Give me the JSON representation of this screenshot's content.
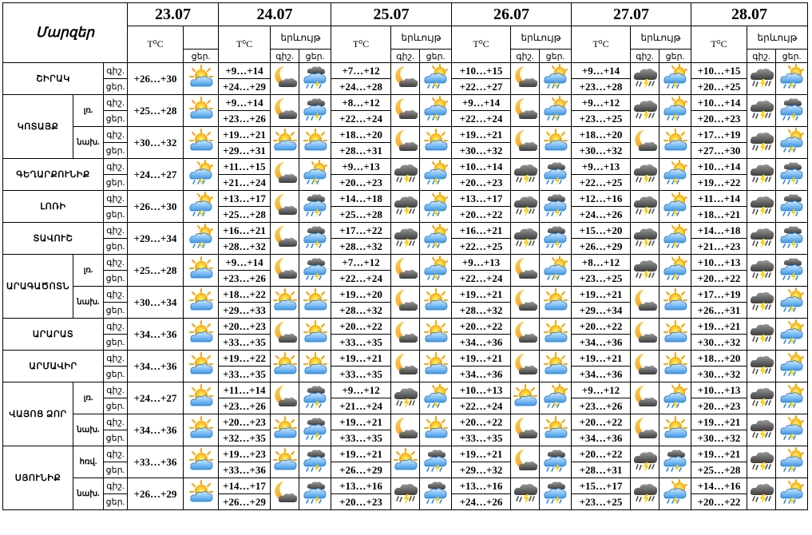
{
  "header": {
    "title": "Մարզեր",
    "temp_label": "T⁰C",
    "phen_label": "երևույթ",
    "night": "գիշ.",
    "day": "ցեր.",
    "days": [
      "23.07",
      "24.07",
      "25.07",
      "26.07",
      "27.07",
      "28.07"
    ]
  },
  "regions": [
    {
      "name": "ՇԻՐԱԿ",
      "rows": [
        {
          "sub": "",
          "d23": {
            "day": "+26…+30",
            "icon": "sun-cloud-icon"
          },
          "days": [
            {
              "n": "+9…+14",
              "d": "+24…+29",
              "i1": "moon-cloud-icon",
              "i2": "cloud-rain-thunder-icon"
            },
            {
              "n": "+7…+12",
              "d": "+24…+28",
              "i1": "moon-cloud-icon",
              "i2": "sun-cloud-rain-icon"
            },
            {
              "n": "+10…+15",
              "d": "+22…+27",
              "i1": "moon-cloud-icon",
              "i2": "sun-cloud-rain-icon"
            },
            {
              "n": "+9…+14",
              "d": "+23…+28",
              "i1": "storm-icon",
              "i2": "sun-cloud-rain-icon"
            },
            {
              "n": "+10…+15",
              "d": "+20…+25",
              "i1": "storm-icon",
              "i2": "sun-cloud-rain-icon"
            }
          ]
        }
      ]
    },
    {
      "name": "ԿՈՏԱՅՔ",
      "rows": [
        {
          "sub": "լռ.",
          "d23": {
            "day": "+25…+28",
            "icon": "sun-cloud-icon"
          },
          "days": [
            {
              "n": "+9…+14",
              "d": "+23…+26",
              "i1": "moon-cloud-icon",
              "i2": "cloud-rain-thunder-icon"
            },
            {
              "n": "+8…+12",
              "d": "+22…+24",
              "i1": "moon-cloud-icon",
              "i2": "sun-cloud-rain-icon"
            },
            {
              "n": "+9…+14",
              "d": "+22…+24",
              "i1": "moon-cloud-icon",
              "i2": "sun-cloud-rain-icon"
            },
            {
              "n": "+9…+12",
              "d": "+23…+25",
              "i1": "storm-icon",
              "i2": "sun-cloud-rain-icon"
            },
            {
              "n": "+10…+14",
              "d": "+20…+23",
              "i1": "storm-icon",
              "i2": "cloud-rain-thunder-icon"
            }
          ]
        },
        {
          "sub": "նախ.",
          "d23": {
            "day": "+30…+32",
            "icon": "sun-cloud-icon"
          },
          "days": [
            {
              "n": "+19…+21",
              "d": "+29…+31",
              "i1": "sun-cloud-icon",
              "i2": "sun-cloud-icon"
            },
            {
              "n": "+18…+20",
              "d": "+28…+31",
              "i1": "moon-cloud-icon",
              "i2": "sun-cloud-icon"
            },
            {
              "n": "+19…+21",
              "d": "+30…+32",
              "i1": "moon-cloud-icon",
              "i2": "sun-cloud-icon"
            },
            {
              "n": "+18…+20",
              "d": "+30…+32",
              "i1": "moon-cloud-icon",
              "i2": "sun-cloud-icon"
            },
            {
              "n": "+17…+19",
              "d": "+27…+30",
              "i1": "storm-icon",
              "i2": "sun-cloud-rain-icon"
            }
          ]
        }
      ]
    },
    {
      "name": "ԳԵՂԱՐՔՈՒՆԻՔ",
      "rows": [
        {
          "sub": "",
          "d23": {
            "day": "+24…+27",
            "icon": "sun-cloud-rain-icon"
          },
          "days": [
            {
              "n": "+11…+15",
              "d": "+21…+24",
              "i1": "moon-cloud-icon",
              "i2": "sun-cloud-rain-icon"
            },
            {
              "n": "+9…+13",
              "d": "+20…+23",
              "i1": "storm-icon",
              "i2": "sun-cloud-rain-icon"
            },
            {
              "n": "+10…+14",
              "d": "+20…+23",
              "i1": "storm-icon",
              "i2": "cloud-rain-thunder-icon"
            },
            {
              "n": "+9…+13",
              "d": "+22…+25",
              "i1": "storm-icon",
              "i2": "sun-cloud-rain-icon"
            },
            {
              "n": "+10…+14",
              "d": "+19…+22",
              "i1": "storm-icon",
              "i2": "cloud-rain-thunder-icon"
            }
          ]
        }
      ]
    },
    {
      "name": "ԼՈՌԻ",
      "rows": [
        {
          "sub": "",
          "d23": {
            "day": "+26…+30",
            "icon": "sun-cloud-rain-icon"
          },
          "days": [
            {
              "n": "+13…+17",
              "d": "+25…+28",
              "i1": "moon-cloud-icon",
              "i2": "cloud-rain-thunder-icon"
            },
            {
              "n": "+14…+18",
              "d": "+25…+28",
              "i1": "storm-icon",
              "i2": "sun-cloud-rain-icon"
            },
            {
              "n": "+13…+17",
              "d": "+20…+22",
              "i1": "storm-icon",
              "i2": "cloud-rain-thunder-icon"
            },
            {
              "n": "+12…+16",
              "d": "+24…+26",
              "i1": "storm-icon",
              "i2": "sun-cloud-rain-icon"
            },
            {
              "n": "+11…+14",
              "d": "+18…+21",
              "i1": "storm-icon",
              "i2": "cloud-rain-thunder-icon"
            }
          ]
        }
      ]
    },
    {
      "name": "ՏԱՎՈՒՇ",
      "rows": [
        {
          "sub": "",
          "d23": {
            "day": "+29…+34",
            "icon": "sun-cloud-rain-icon"
          },
          "days": [
            {
              "n": "+16…+21",
              "d": "+28…+32",
              "i1": "moon-cloud-icon",
              "i2": "cloud-rain-thunder-icon"
            },
            {
              "n": "+17…+22",
              "d": "+28…+32",
              "i1": "storm-icon",
              "i2": "sun-cloud-rain-icon"
            },
            {
              "n": "+16…+21",
              "d": "+22…+25",
              "i1": "storm-icon",
              "i2": "cloud-rain-thunder-icon"
            },
            {
              "n": "+15…+20",
              "d": "+26…+29",
              "i1": "storm-icon",
              "i2": "sun-cloud-rain-icon"
            },
            {
              "n": "+14…+18",
              "d": "+21…+23",
              "i1": "storm-icon",
              "i2": "cloud-rain-thunder-icon"
            }
          ]
        }
      ]
    },
    {
      "name": "ԱՐԱԳԱԾՈՏՆ",
      "rows": [
        {
          "sub": "լռ.",
          "d23": {
            "day": "+25…+28",
            "icon": "sun-cloud-icon"
          },
          "days": [
            {
              "n": "+9…+14",
              "d": "+23…+26",
              "i1": "moon-cloud-icon",
              "i2": "cloud-rain-thunder-icon"
            },
            {
              "n": "+7…+12",
              "d": "+22…+24",
              "i1": "moon-cloud-icon",
              "i2": "sun-cloud-rain-icon"
            },
            {
              "n": "+9…+13",
              "d": "+22…+24",
              "i1": "moon-cloud-icon",
              "i2": "sun-cloud-rain-icon"
            },
            {
              "n": "+8…+12",
              "d": "+23…+25",
              "i1": "storm-icon",
              "i2": "sun-cloud-rain-icon"
            },
            {
              "n": "+10…+13",
              "d": "+20…+22",
              "i1": "storm-icon",
              "i2": "cloud-rain-thunder-icon"
            }
          ]
        },
        {
          "sub": "նախ.",
          "d23": {
            "day": "+30…+34",
            "icon": "sun-cloud-icon"
          },
          "days": [
            {
              "n": "+18…+22",
              "d": "+29…+33",
              "i1": "sun-cloud-icon",
              "i2": "sun-cloud-icon"
            },
            {
              "n": "+19…+20",
              "d": "+28…+32",
              "i1": "moon-cloud-icon",
              "i2": "sun-cloud-icon"
            },
            {
              "n": "+19…+21",
              "d": "+28…+32",
              "i1": "moon-cloud-icon",
              "i2": "sun-cloud-icon"
            },
            {
              "n": "+19…+21",
              "d": "+29…+34",
              "i1": "moon-cloud-icon",
              "i2": "sun-cloud-icon"
            },
            {
              "n": "+17…+19",
              "d": "+26…+31",
              "i1": "storm-icon",
              "i2": "sun-cloud-rain-icon"
            }
          ]
        }
      ]
    },
    {
      "name": "ԱՐԱՐԱՏ",
      "rows": [
        {
          "sub": "",
          "d23": {
            "day": "+34…+36",
            "icon": "sun-cloud-icon"
          },
          "days": [
            {
              "n": "+20…+23",
              "d": "+33…+35",
              "i1": "moon-cloud-icon",
              "i2": "sun-cloud-icon"
            },
            {
              "n": "+20…+22",
              "d": "+33…+35",
              "i1": "moon-cloud-icon",
              "i2": "sun-cloud-icon"
            },
            {
              "n": "+20…+22",
              "d": "+34…+36",
              "i1": "moon-cloud-icon",
              "i2": "sun-cloud-icon"
            },
            {
              "n": "+20…+22",
              "d": "+34…+36",
              "i1": "moon-cloud-icon",
              "i2": "sun-cloud-icon"
            },
            {
              "n": "+19…+21",
              "d": "+30…+32",
              "i1": "storm-icon",
              "i2": "sun-cloud-rain-icon"
            }
          ]
        }
      ]
    },
    {
      "name": "ԱՐՄԱՎԻՐ",
      "rows": [
        {
          "sub": "",
          "d23": {
            "day": "+34…+36",
            "icon": "sun-cloud-icon"
          },
          "days": [
            {
              "n": "+19…+22",
              "d": "+33…+35",
              "i1": "sun-cloud-icon",
              "i2": "sun-cloud-icon"
            },
            {
              "n": "+19…+21",
              "d": "+33…+35",
              "i1": "moon-cloud-icon",
              "i2": "sun-cloud-icon"
            },
            {
              "n": "+19…+21",
              "d": "+34…+36",
              "i1": "moon-cloud-icon",
              "i2": "sun-cloud-icon"
            },
            {
              "n": "+19…+21",
              "d": "+34…+36",
              "i1": "moon-cloud-icon",
              "i2": "sun-cloud-icon"
            },
            {
              "n": "+18…+20",
              "d": "+30…+32",
              "i1": "storm-icon",
              "i2": "sun-cloud-rain-icon"
            }
          ]
        }
      ]
    },
    {
      "name": "ՎԱՅՈՑ ՁՈՐ",
      "rows": [
        {
          "sub": "լռ.",
          "d23": {
            "day": "+24…+27",
            "icon": "sun-cloud-icon"
          },
          "days": [
            {
              "n": "+11…+14",
              "d": "+23…+26",
              "i1": "moon-cloud-icon",
              "i2": "cloud-rain-thunder-icon"
            },
            {
              "n": "+9…+12",
              "d": "+21…+24",
              "i1": "storm-icon",
              "i2": "sun-cloud-rain-icon"
            },
            {
              "n": "+10…+13",
              "d": "+22…+24",
              "i1": "sun-cloud-icon",
              "i2": "sun-cloud-rain-icon"
            },
            {
              "n": "+9…+12",
              "d": "+23…+26",
              "i1": "moon-cloud-icon",
              "i2": "sun-cloud-rain-icon"
            },
            {
              "n": "+10…+13",
              "d": "+20…+23",
              "i1": "storm-icon",
              "i2": "sun-cloud-rain-icon"
            }
          ]
        },
        {
          "sub": "նախ.",
          "d23": {
            "day": "+34…+36",
            "icon": "sun-cloud-icon"
          },
          "days": [
            {
              "n": "+20…+23",
              "d": "+32…+35",
              "i1": "sun-cloud-icon",
              "i2": "cloud-rain-thunder-icon"
            },
            {
              "n": "+19…+21",
              "d": "+33…+35",
              "i1": "moon-cloud-icon",
              "i2": "sun-cloud-icon"
            },
            {
              "n": "+20…+22",
              "d": "+33…+35",
              "i1": "moon-cloud-icon",
              "i2": "sun-cloud-icon"
            },
            {
              "n": "+20…+22",
              "d": "+34…+36",
              "i1": "moon-cloud-icon",
              "i2": "sun-cloud-icon"
            },
            {
              "n": "+19…+21",
              "d": "+30…+32",
              "i1": "storm-icon",
              "i2": "sun-cloud-rain-icon"
            }
          ]
        }
      ]
    },
    {
      "name": "ՍՅՈՒՆԻՔ",
      "rows": [
        {
          "sub": "հռվ.",
          "d23": {
            "day": "+33…+36",
            "icon": "sun-cloud-icon"
          },
          "days": [
            {
              "n": "+19…+23",
              "d": "+33…+36",
              "i1": "sun-cloud-icon",
              "i2": "cloud-rain-thunder-icon"
            },
            {
              "n": "+19…+21",
              "d": "+26…+29",
              "i1": "sun-cloud-icon",
              "i2": "cloud-rain-thunder-icon"
            },
            {
              "n": "+19…+21",
              "d": "+29…+32",
              "i1": "moon-cloud-icon",
              "i2": "cloud-rain-thunder-icon"
            },
            {
              "n": "+20…+22",
              "d": "+28…+31",
              "i1": "storm-icon",
              "i2": "cloud-rain-thunder-icon"
            },
            {
              "n": "+19…+21",
              "d": "+25…+28",
              "i1": "storm-icon",
              "i2": "sun-cloud-rain-icon"
            }
          ]
        },
        {
          "sub": "նախ.",
          "d23": {
            "day": "+26…+29",
            "icon": "sun-cloud-icon"
          },
          "days": [
            {
              "n": "+14…+17",
              "d": "+26…+29",
              "i1": "moon-cloud-icon",
              "i2": "cloud-rain-thunder-icon"
            },
            {
              "n": "+13…+16",
              "d": "+20…+23",
              "i1": "storm-icon",
              "i2": "cloud-rain-thunder-icon"
            },
            {
              "n": "+13…+16",
              "d": "+24…+26",
              "i1": "storm-icon",
              "i2": "cloud-rain-thunder-icon"
            },
            {
              "n": "+15…+17",
              "d": "+23…+25",
              "i1": "storm-icon",
              "i2": "sun-cloud-rain-icon"
            },
            {
              "n": "+14…+16",
              "d": "+20…+22",
              "i1": "storm-icon",
              "i2": "sun-cloud-rain-icon"
            }
          ]
        }
      ]
    }
  ]
}
